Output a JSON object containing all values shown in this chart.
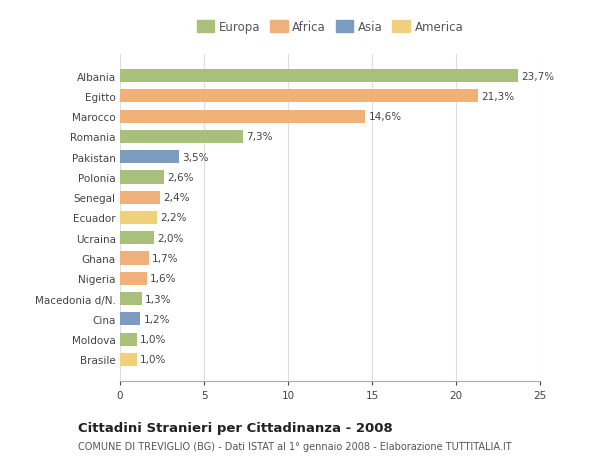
{
  "categories": [
    "Albania",
    "Egitto",
    "Marocco",
    "Romania",
    "Pakistan",
    "Polonia",
    "Senegal",
    "Ecuador",
    "Ucraina",
    "Ghana",
    "Nigeria",
    "Macedonia d/N.",
    "Cina",
    "Moldova",
    "Brasile"
  ],
  "values": [
    23.7,
    21.3,
    14.6,
    7.3,
    3.5,
    2.6,
    2.4,
    2.2,
    2.0,
    1.7,
    1.6,
    1.3,
    1.2,
    1.0,
    1.0
  ],
  "labels": [
    "23,7%",
    "21,3%",
    "14,6%",
    "7,3%",
    "3,5%",
    "2,6%",
    "2,4%",
    "2,2%",
    "2,0%",
    "1,7%",
    "1,6%",
    "1,3%",
    "1,2%",
    "1,0%",
    "1,0%"
  ],
  "bar_colors": [
    "#a8c07a",
    "#f0b07a",
    "#f0b07a",
    "#a8c07a",
    "#7b9cc0",
    "#a8c07a",
    "#f0b07a",
    "#f0d07a",
    "#a8c07a",
    "#f0b07a",
    "#f0b07a",
    "#a8c07a",
    "#7b9cc0",
    "#a8c07a",
    "#f0d07a"
  ],
  "legend": [
    {
      "label": "Europa",
      "color": "#a8c07a"
    },
    {
      "label": "Africa",
      "color": "#f0b07a"
    },
    {
      "label": "Asia",
      "color": "#7b9cc0"
    },
    {
      "label": "America",
      "color": "#f0d07a"
    }
  ],
  "xlim": [
    0,
    25
  ],
  "xticks": [
    0,
    5,
    10,
    15,
    20,
    25
  ],
  "title": "Cittadini Stranieri per Cittadinanza - 2008",
  "subtitle": "COMUNE DI TREVIGLIO (BG) - Dati ISTAT al 1° gennaio 2008 - Elaborazione TUTTITALIA.IT",
  "background_color": "#ffffff",
  "grid_color": "#dddddd",
  "bar_height": 0.65,
  "label_fontsize": 7.5,
  "tick_fontsize": 7.5,
  "title_fontsize": 9.5,
  "subtitle_fontsize": 7.0,
  "legend_fontsize": 8.5
}
